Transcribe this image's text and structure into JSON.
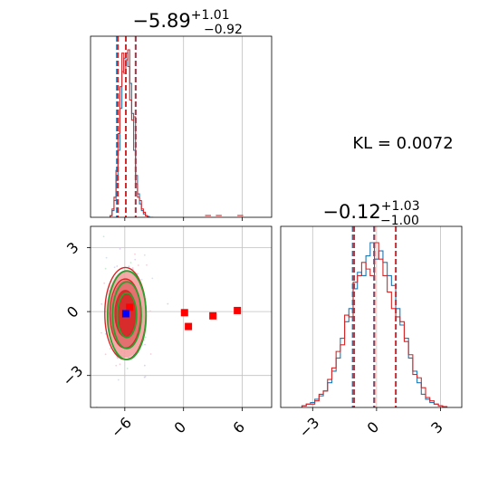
{
  "colors": {
    "hist_blue": "#1f77b4",
    "hist_red": "#d62728",
    "quantile_blue": "#1f77b4",
    "quantile_red": "#d62728",
    "contour_green": "#2ca02c",
    "contour_red": "#d62728",
    "fill_pink": "#f4a0a0",
    "marker_red": "#ff0000",
    "marker_blue": "#0000ff",
    "grid": "#c0c0c0"
  },
  "chart_data": [
    {
      "id": "top-left-histogram",
      "type": "line",
      "title_main": "−5.89",
      "title_sup": "+1.01",
      "title_sub": "−0.92",
      "xlim": [
        -9.5,
        9
      ],
      "xgrid": [
        0,
        6
      ],
      "bins_x": [
        -7.4,
        -7.2,
        -7.0,
        -6.8,
        -6.6,
        -6.4,
        -6.2,
        -6.0,
        -5.8,
        -5.6,
        -5.4,
        -5.2,
        -5.0,
        -4.8,
        -4.6,
        -4.4,
        -4.2,
        -4.0,
        -3.8,
        -3.6,
        -3.4,
        -3.2
      ],
      "series": [
        {
          "values": [
            0.01,
            0.04,
            0.1,
            0.22,
            0.4,
            0.65,
            0.87,
            0.95,
            0.98,
            0.9,
            0.8,
            0.62,
            0.4,
            0.25,
            0.14,
            0.08,
            0.04,
            0.02,
            0.01,
            0.005,
            0,
            0
          ]
        },
        {
          "values": [
            0.01,
            0.05,
            0.12,
            0.28,
            0.5,
            0.78,
            0.98,
            0.86,
            0.94,
            1.0,
            0.7,
            0.58,
            0.6,
            0.2,
            0.12,
            0.1,
            0.05,
            0.03,
            0.01,
            0,
            0,
            0
          ],
          "outliers": [
            [
              2.5,
              0.01
            ],
            [
              3.6,
              0.01
            ],
            [
              5.8,
              0.01
            ]
          ]
        }
      ],
      "quantiles_blue": [
        -6.81,
        -5.89,
        -4.88
      ],
      "quantiles_red": [
        -6.7,
        -5.9,
        -4.9
      ]
    },
    {
      "id": "bottom-left-scatter",
      "type": "scatter",
      "xlim": [
        -9.5,
        9
      ],
      "ylim": [
        -4.5,
        4
      ],
      "xticks": [
        -6,
        0,
        6
      ],
      "yticks": [
        -3,
        0,
        3
      ],
      "xtick_labels": [
        "−6",
        "0",
        "6"
      ],
      "ytick_labels": [
        "−3",
        "0",
        "3"
      ],
      "center": [
        -5.89,
        -0.12
      ],
      "contour_levels_sigma": [
        1,
        1.5,
        2
      ],
      "markers_red": [
        [
          -5.5,
          0.2
        ],
        [
          0.1,
          -0.05
        ],
        [
          0.5,
          -0.7
        ],
        [
          3.0,
          -0.2
        ],
        [
          5.5,
          0.05
        ]
      ],
      "marker_blue": [
        -5.9,
        -0.1
      ]
    },
    {
      "id": "bottom-right-histogram",
      "type": "line",
      "title_main": "−0.12",
      "title_sup": "+1.03",
      "title_sub": "−1.00",
      "xlim": [
        -4.5,
        4
      ],
      "xticks": [
        -3,
        0,
        3
      ],
      "xtick_labels": [
        "−3",
        "0",
        "3"
      ],
      "annotation": "KL = 0.0072",
      "bins_x": [
        -3.4,
        -3.2,
        -3.0,
        -2.8,
        -2.6,
        -2.4,
        -2.2,
        -2.0,
        -1.8,
        -1.6,
        -1.4,
        -1.2,
        -1.0,
        -0.8,
        -0.6,
        -0.4,
        -0.2,
        0.0,
        0.2,
        0.4,
        0.6,
        0.8,
        1.0,
        1.2,
        1.4,
        1.6,
        1.8,
        2.0,
        2.2,
        2.4,
        2.6,
        2.8,
        3.0,
        3.2
      ],
      "series": [
        {
          "values": [
            0.01,
            0.02,
            0.03,
            0.05,
            0.07,
            0.1,
            0.15,
            0.22,
            0.3,
            0.42,
            0.52,
            0.6,
            0.72,
            0.82,
            0.8,
            0.92,
            1.0,
            0.9,
            0.95,
            0.88,
            0.8,
            0.74,
            0.6,
            0.5,
            0.42,
            0.3,
            0.22,
            0.15,
            0.08,
            0.05,
            0.03,
            0.02,
            0.01,
            0.005
          ]
        },
        {
          "values": [
            0.01,
            0.02,
            0.02,
            0.04,
            0.08,
            0.1,
            0.17,
            0.24,
            0.34,
            0.38,
            0.56,
            0.55,
            0.76,
            0.8,
            0.88,
            0.84,
            0.8,
            1.0,
            0.9,
            0.8,
            0.7,
            0.6,
            0.55,
            0.52,
            0.4,
            0.32,
            0.2,
            0.18,
            0.12,
            0.06,
            0.04,
            0.02,
            0.01,
            0.005
          ]
        }
      ],
      "quantiles_blue": [
        -1.12,
        -0.12,
        0.91
      ],
      "quantiles_red": [
        -1.05,
        -0.1,
        0.9
      ]
    }
  ]
}
